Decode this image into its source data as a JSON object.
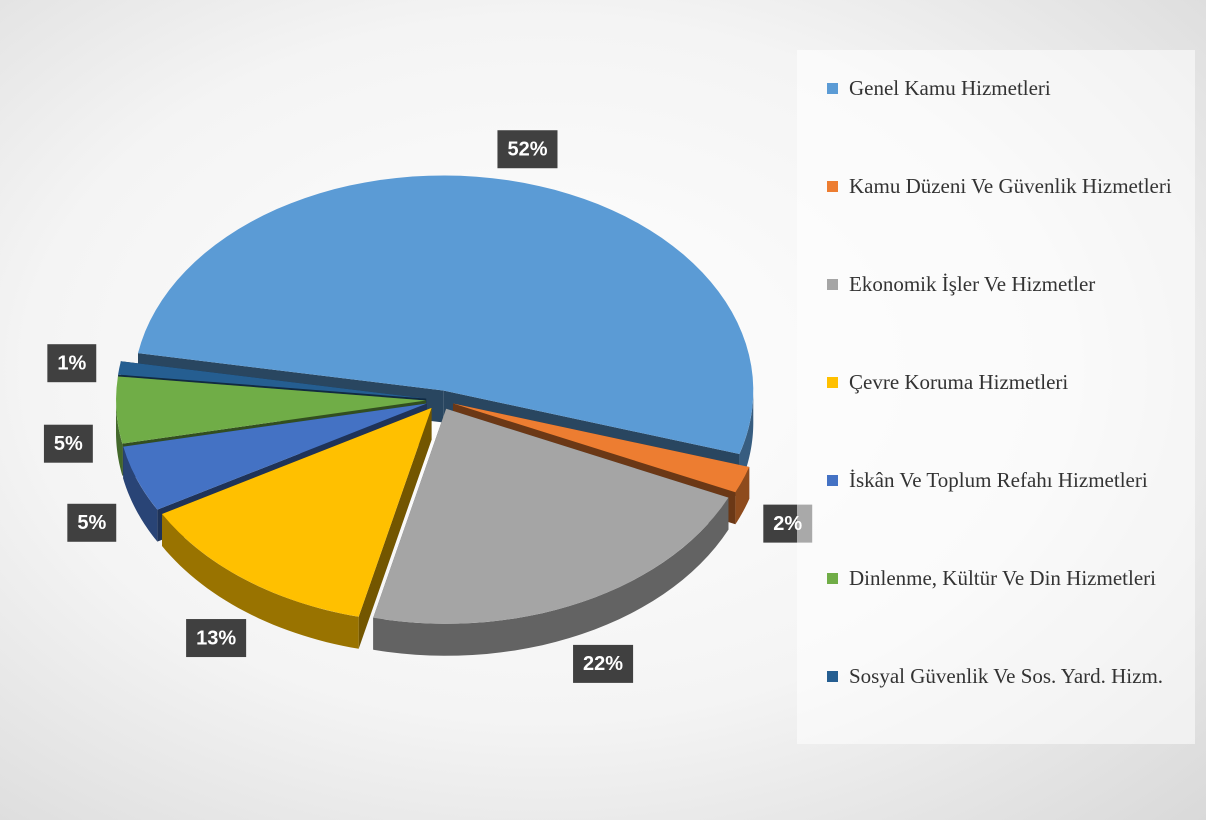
{
  "chart_data": {
    "type": "pie",
    "categories": [
      "Genel Kamu Hizmetleri",
      "Kamu Düzeni Ve Güvenlik Hizmetleri",
      "Ekonomik İşler Ve Hizmetler",
      "Çevre Koruma Hizmetleri",
      "İskân Ve Toplum Refahı Hizmetleri",
      "Dinlenme, Kültür Ve Din Hizmetleri",
      "Sosyal Güvenlik Ve Sos. Yard. Hizm."
    ],
    "values": [
      52,
      2,
      22,
      13,
      5,
      5,
      1
    ],
    "value_labels": [
      "52%",
      "2%",
      "22%",
      "13%",
      "5%",
      "5%",
      "1%"
    ],
    "colors": [
      "#5b9bd5",
      "#ed7d31",
      "#a5a5a5",
      "#ffc000",
      "#4472c4",
      "#70ad47",
      "#255e91"
    ],
    "legend": "right"
  }
}
